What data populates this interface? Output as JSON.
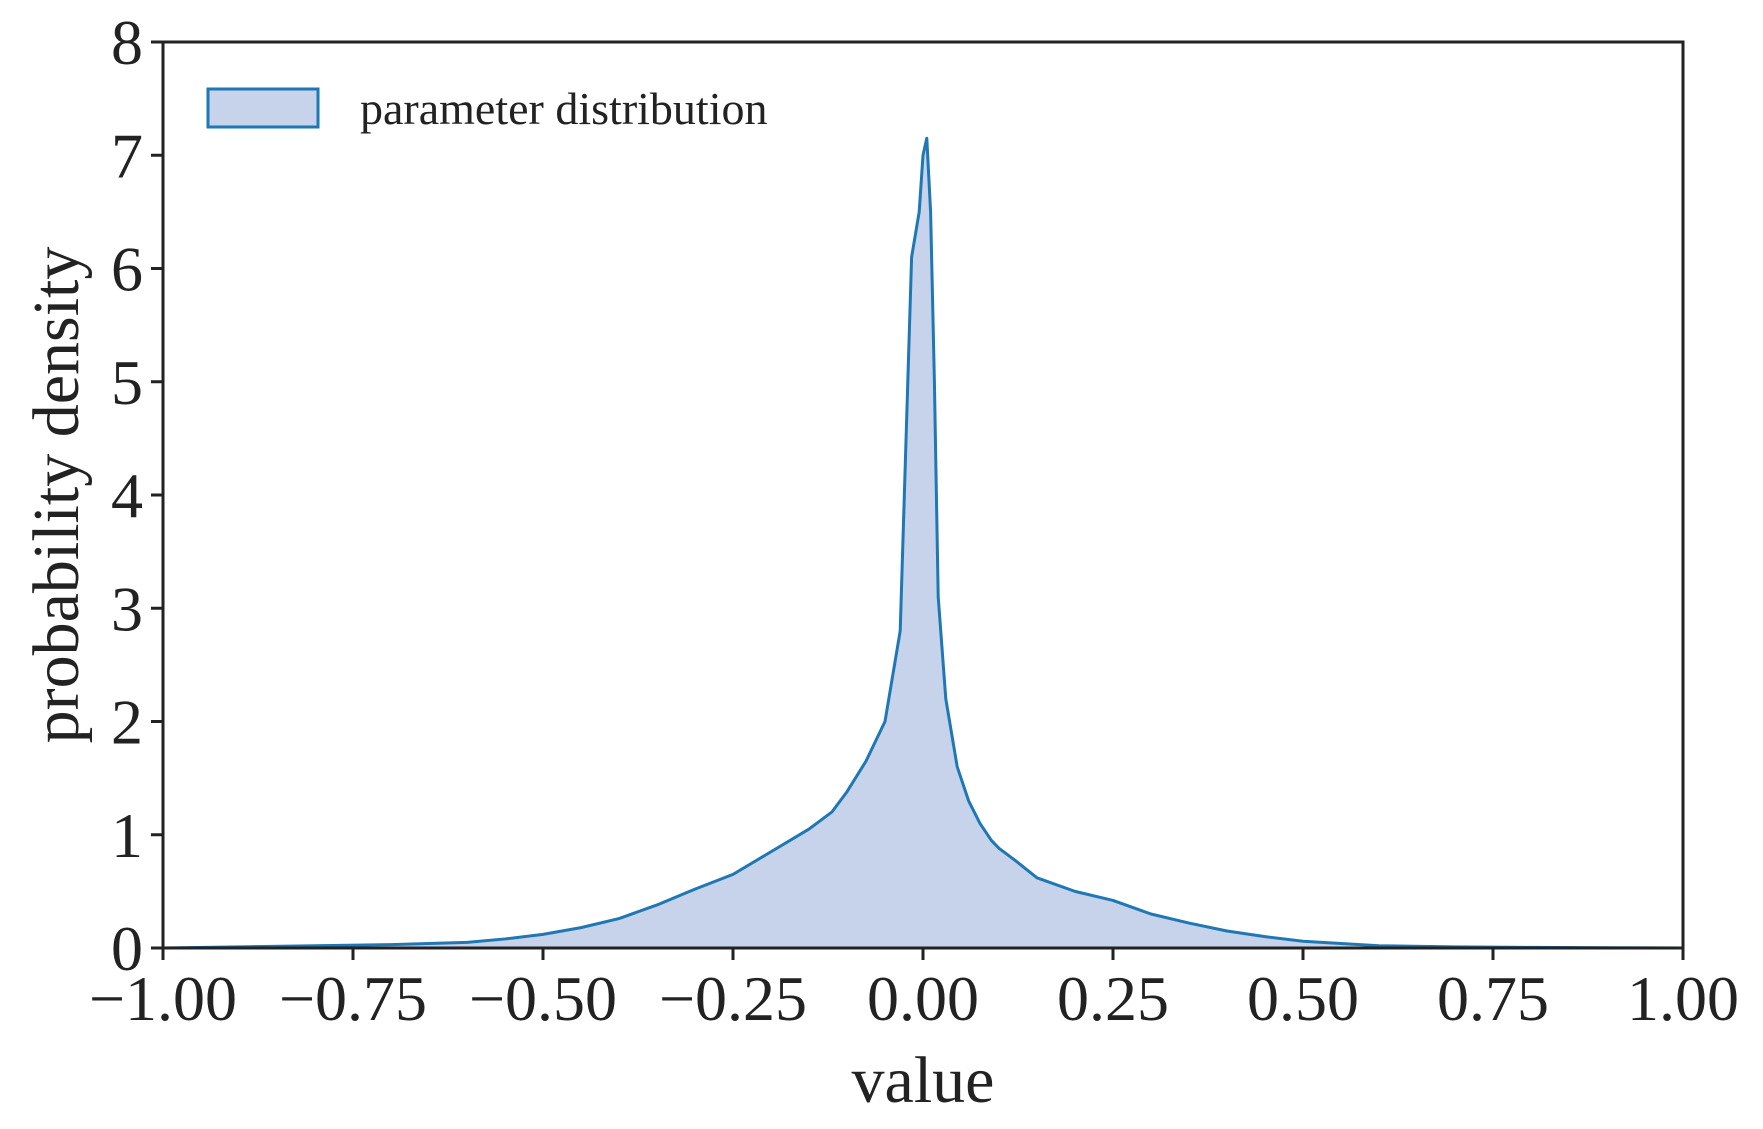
{
  "chart_data": {
    "type": "area",
    "xlabel": "value",
    "ylabel": "probability density",
    "xlim": [
      -1.0,
      1.0
    ],
    "ylim": [
      0,
      8
    ],
    "xticks": [
      "−1.00",
      "−0.75",
      "−0.50",
      "−0.25",
      "0.00",
      "0.25",
      "0.50",
      "0.75",
      "1.00"
    ],
    "xtick_values": [
      -1.0,
      -0.75,
      -0.5,
      -0.25,
      0.0,
      0.25,
      0.5,
      0.75,
      1.0
    ],
    "yticks": [
      "0",
      "1",
      "2",
      "3",
      "4",
      "5",
      "6",
      "7",
      "8"
    ],
    "ytick_values": [
      0,
      1,
      2,
      3,
      4,
      5,
      6,
      7,
      8
    ],
    "grid": false,
    "legend_position": "top-left",
    "series": [
      {
        "name": "parameter distribution",
        "line_color": "#1f77b4",
        "fill_color": "#c6d3ea",
        "x": [
          -1.0,
          -0.9,
          -0.8,
          -0.7,
          -0.6,
          -0.55,
          -0.5,
          -0.45,
          -0.4,
          -0.35,
          -0.3,
          -0.25,
          -0.2,
          -0.15,
          -0.12,
          -0.1,
          -0.075,
          -0.05,
          -0.03,
          -0.015,
          -0.005,
          0.0,
          0.005,
          0.01,
          0.015,
          0.02,
          0.03,
          0.045,
          0.06,
          0.075,
          0.09,
          0.1,
          0.12,
          0.15,
          0.2,
          0.25,
          0.3,
          0.35,
          0.4,
          0.45,
          0.5,
          0.55,
          0.6,
          0.7,
          0.8,
          0.9,
          1.0
        ],
        "y": [
          0.0,
          0.01,
          0.02,
          0.03,
          0.05,
          0.08,
          0.12,
          0.18,
          0.26,
          0.38,
          0.52,
          0.65,
          0.85,
          1.05,
          1.2,
          1.38,
          1.65,
          2.0,
          2.8,
          6.1,
          6.5,
          7.0,
          7.15,
          6.5,
          5.0,
          3.1,
          2.2,
          1.6,
          1.3,
          1.1,
          0.95,
          0.88,
          0.78,
          0.62,
          0.5,
          0.42,
          0.3,
          0.22,
          0.15,
          0.1,
          0.06,
          0.04,
          0.02,
          0.01,
          0.005,
          0.002,
          0.0
        ]
      }
    ]
  }
}
